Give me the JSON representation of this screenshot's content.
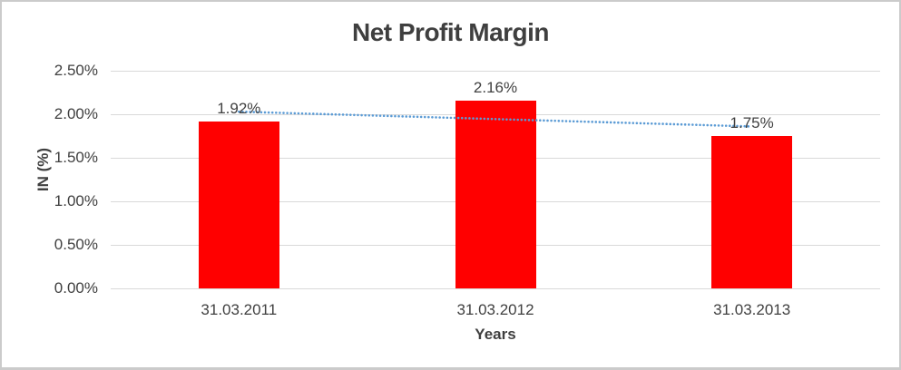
{
  "chart_data": {
    "type": "bar",
    "title": "Net Profit Margin",
    "xlabel": "Years",
    "ylabel": "IN (%)",
    "categories": [
      "31.03.2011",
      "31.03.2012",
      "31.03.2013"
    ],
    "values": [
      1.92,
      2.16,
      1.75
    ],
    "data_labels": [
      "1.92%",
      "2.16%",
      "1.75%"
    ],
    "ylim": [
      0,
      2.5
    ],
    "ytick_step": 0.5,
    "ytick_labels": [
      "0.00%",
      "0.50%",
      "1.00%",
      "1.50%",
      "2.00%",
      "2.50%"
    ],
    "grid": true,
    "legend": "none",
    "trendline": {
      "type": "linear",
      "style": "dotted",
      "start_value": 2.03,
      "end_value": 1.86
    },
    "colors": {
      "bar": "#FF0000",
      "trendline": "#5B9BD5",
      "gridline": "#D9D9D9",
      "text": "#404040",
      "title_text": "#3F3F3F",
      "border": "#CBCBCB",
      "background": "#FFFFFF"
    }
  }
}
